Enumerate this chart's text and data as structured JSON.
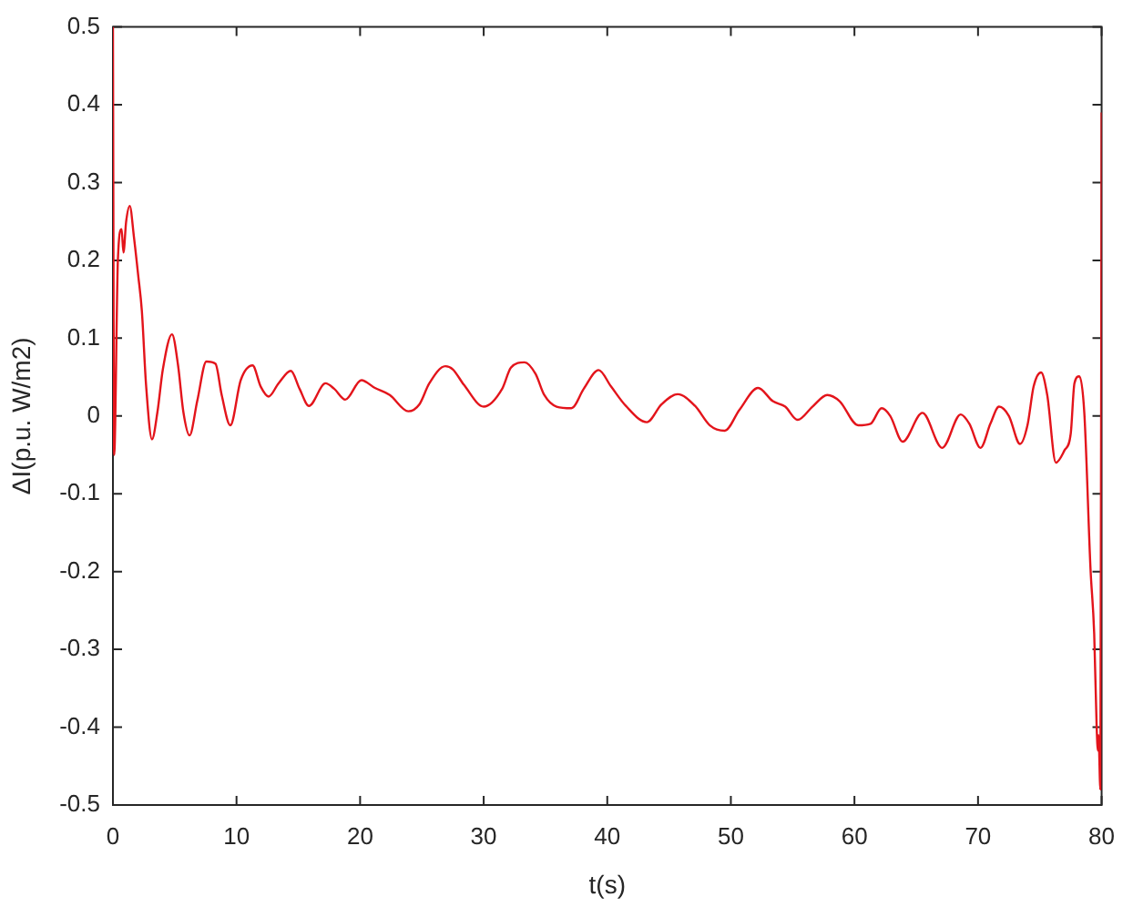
{
  "chart_data": {
    "type": "line",
    "xlabel": "t(s)",
    "ylabel": "ΔI(p.u. W/m2)",
    "x": [
      0,
      0.1,
      0.4,
      0.7,
      0.85,
      1.07,
      1.36,
      1.7,
      2.05,
      2.34,
      2.68,
      3.16,
      3.6,
      4.04,
      4.78,
      5.27,
      5.7,
      6.2,
      6.83,
      7.56,
      8.3,
      8.8,
      9.5,
      10.34,
      11.3,
      11.95,
      12.6,
      13.4,
      14.4,
      15.1,
      15.86,
      17.2,
      17.9,
      18.8,
      20.1,
      21.2,
      22.4,
      23.9,
      24.8,
      25.6,
      26.9,
      27.5,
      28.4,
      30.0,
      31.5,
      32.2,
      33.3,
      34.2,
      34.9,
      35.9,
      37.1,
      38.1,
      39.3,
      40.3,
      41.5,
      43.2,
      44.4,
      45.7,
      47.1,
      48.3,
      49.5,
      50.7,
      52.2,
      53.4,
      54.4,
      55.4,
      56.6,
      57.8,
      58.8,
      60.3,
      61.3,
      62.2,
      62.9,
      63.9,
      65.5,
      67.1,
      68.6,
      69.3,
      70.2,
      71.0,
      71.7,
      72.5,
      73.4,
      74.0,
      74.5,
      75.1,
      75.6,
      76.3,
      77.0,
      77.5,
      77.8,
      78.2,
      78.6,
      79.1,
      79.4,
      79.6,
      79.7,
      79.75,
      79.9,
      80
    ],
    "values": [
      0.5,
      -0.05,
      0.2,
      0.24,
      0.21,
      0.25,
      0.27,
      0.23,
      0.18,
      0.135,
      0.04,
      -0.03,
      0.005,
      0.06,
      0.105,
      0.065,
      0.005,
      -0.025,
      0.02,
      0.07,
      0.067,
      0.027,
      -0.012,
      0.046,
      0.065,
      0.038,
      0.025,
      0.042,
      0.058,
      0.035,
      0.013,
      0.042,
      0.035,
      0.021,
      0.046,
      0.036,
      0.027,
      0.006,
      0.015,
      0.042,
      0.064,
      0.06,
      0.04,
      0.012,
      0.035,
      0.062,
      0.069,
      0.054,
      0.027,
      0.012,
      0.01,
      0.035,
      0.059,
      0.038,
      0.013,
      -0.008,
      0.015,
      0.028,
      0.013,
      -0.012,
      -0.019,
      0.008,
      0.036,
      0.019,
      0.012,
      -0.005,
      0.012,
      0.027,
      0.019,
      -0.012,
      -0.01,
      0.01,
      0.0,
      -0.033,
      0.004,
      -0.041,
      0.002,
      -0.01,
      -0.041,
      -0.01,
      0.012,
      0.0,
      -0.036,
      -0.012,
      0.038,
      0.056,
      0.027,
      -0.06,
      -0.044,
      -0.023,
      0.042,
      0.051,
      0.004,
      -0.196,
      -0.28,
      -0.4,
      -0.43,
      -0.41,
      -0.48,
      0.39
    ],
    "color": "#e3141b",
    "xlim": [
      0,
      80
    ],
    "ylim": [
      -0.5,
      0.5
    ],
    "xticks": [
      0,
      10,
      20,
      30,
      40,
      50,
      60,
      70,
      80
    ],
    "yticks": [
      -0.5,
      -0.4,
      -0.3,
      -0.2,
      -0.1,
      0,
      0.1,
      0.2,
      0.3,
      0.4,
      0.5
    ]
  }
}
